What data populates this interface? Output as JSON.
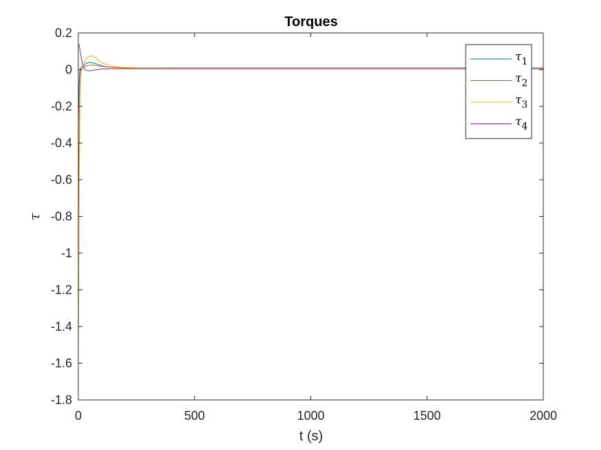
{
  "chart_data": {
    "type": "line",
    "title": "Torques",
    "xlabel": "t (s)",
    "ylabel": "τ",
    "xlim": [
      0,
      2000
    ],
    "ylim": [
      -1.8,
      0.2
    ],
    "xticks": [
      0,
      500,
      1000,
      1500,
      2000
    ],
    "xtick_labels": [
      "0",
      "500",
      "1000",
      "1500",
      "2000"
    ],
    "yticks": [
      0.2,
      0,
      -0.2,
      -0.4,
      -0.6,
      -0.8,
      -1,
      -1.2,
      -1.4,
      -1.6,
      -1.8
    ],
    "ytick_labels": [
      "0.2",
      "0",
      "-0.2",
      "-0.4",
      "-0.6",
      "-0.8",
      "-1",
      "-1.2",
      "-1.4",
      "-1.6",
      "-1.8"
    ],
    "grid": false,
    "legend_position": "top-right",
    "series": [
      {
        "name": "τ1",
        "label_base": "τ",
        "label_sub": "1",
        "color": "#0072BD",
        "x": [
          0,
          3,
          6,
          10,
          15,
          20,
          30,
          40,
          50,
          60,
          75,
          90,
          110,
          130,
          160,
          200,
          300,
          500,
          2000
        ],
        "y": [
          -0.3,
          -0.1,
          -0.01,
          0.01,
          0.015,
          0.02,
          0.03,
          0.037,
          0.04,
          0.038,
          0.033,
          0.026,
          0.018,
          0.014,
          0.011,
          0.01,
          0.01,
          0.01,
          0.01
        ]
      },
      {
        "name": "τ2",
        "label_base": "τ",
        "label_sub": "2",
        "color": "#D95319",
        "x": [
          0,
          2,
          4,
          6,
          8,
          10,
          14,
          20,
          30,
          40,
          55,
          70,
          90,
          120,
          160,
          220,
          400,
          2000
        ],
        "y": [
          -0.86,
          -0.6,
          -0.3,
          -0.12,
          -0.04,
          -0.005,
          0.005,
          0.01,
          0.018,
          0.022,
          0.025,
          0.024,
          0.02,
          0.015,
          0.011,
          0.009,
          0.008,
          0.008
        ]
      },
      {
        "name": "τ3",
        "label_base": "τ",
        "label_sub": "3",
        "color": "#EDB120",
        "x": [
          0,
          2,
          4,
          6,
          8,
          10,
          13,
          17,
          22,
          30,
          40,
          50,
          60,
          75,
          90,
          110,
          140,
          180,
          250,
          400,
          2000
        ],
        "y": [
          -1.6,
          -1.2,
          -0.6,
          -0.3,
          -0.12,
          -0.04,
          0.0,
          0.02,
          0.035,
          0.05,
          0.065,
          0.075,
          0.074,
          0.063,
          0.047,
          0.033,
          0.02,
          0.013,
          0.01,
          0.009,
          0.009
        ]
      },
      {
        "name": "τ4",
        "label_base": "τ",
        "label_sub": "4",
        "color": "#7E2F8E",
        "x": [
          0,
          2,
          4,
          7,
          10,
          14,
          18,
          23,
          30,
          40,
          50,
          60,
          75,
          90,
          110,
          140,
          180,
          250,
          400,
          2000
        ],
        "y": [
          0.13,
          0.14,
          0.13,
          0.11,
          0.085,
          0.055,
          0.03,
          0.01,
          -0.002,
          -0.006,
          -0.006,
          -0.004,
          -0.001,
          0.002,
          0.004,
          0.005,
          0.005,
          0.005,
          0.005,
          0.005
        ]
      }
    ]
  }
}
